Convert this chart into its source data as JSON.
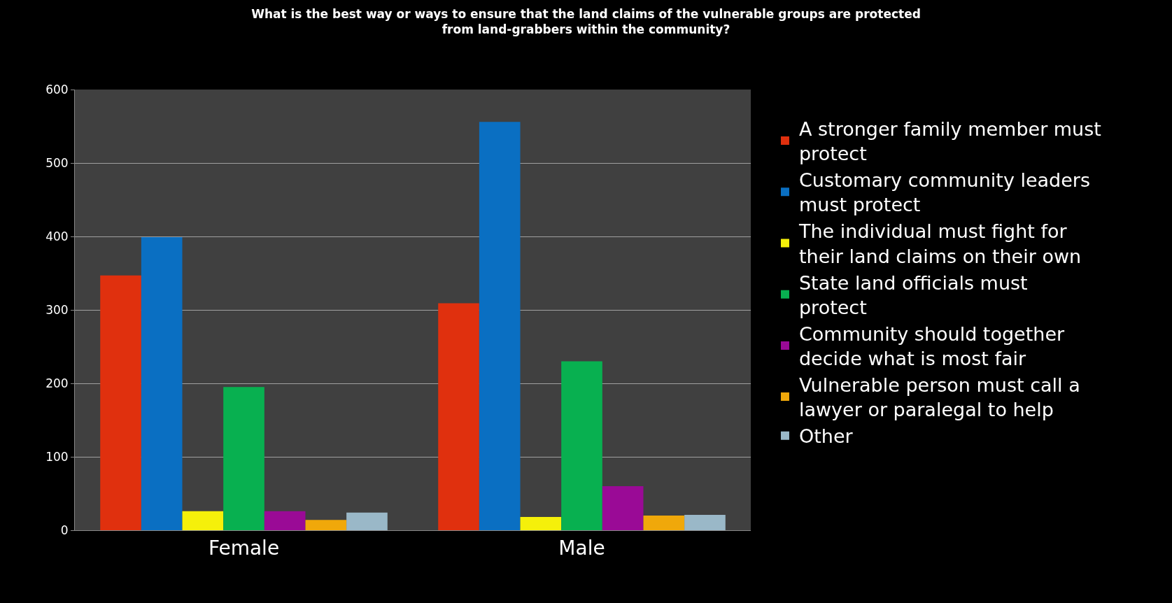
{
  "chart_data": {
    "type": "bar",
    "title": "What is the best way or ways to ensure that the land claims of the vulnerable groups are protected from land-grabbers within the community?",
    "categories": [
      "Female",
      "Male"
    ],
    "series": [
      {
        "name": "A stronger family member must protect",
        "color": "#e0300e",
        "values": [
          347,
          309
        ]
      },
      {
        "name": "Customary community leaders must protect",
        "color": "#0a6fc2",
        "values": [
          399,
          556
        ]
      },
      {
        "name": "The individual must fight for their land claims on their own",
        "color": "#f5f00a",
        "values": [
          26,
          18
        ]
      },
      {
        "name": "State land officials must protect",
        "color": "#08b050",
        "values": [
          195,
          230
        ]
      },
      {
        "name": "Community should together decide what is most fair",
        "color": "#9a0a96",
        "values": [
          26,
          60
        ]
      },
      {
        "name": "Vulnerable person must call a lawyer or paralegal to help",
        "color": "#f0a80a",
        "values": [
          14,
          20
        ]
      },
      {
        "name": "Other",
        "color": "#9ab8c8",
        "values": [
          24,
          21
        ]
      }
    ],
    "ylim": [
      0,
      600
    ],
    "yticks": [
      0,
      100,
      200,
      300,
      400,
      500,
      600
    ],
    "grid": "y",
    "legend": "right"
  }
}
